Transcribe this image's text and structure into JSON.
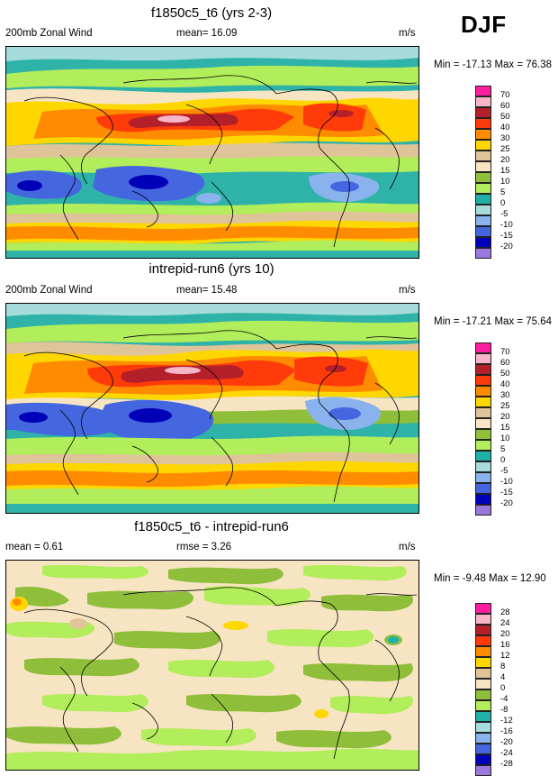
{
  "season": "DJF",
  "panels": [
    {
      "title": "f1850c5_t6 (yrs 2-3)",
      "variable": "200mb Zonal Wind",
      "stat_text": "mean=  16.09",
      "units": "m/s",
      "minmax": "Min = -17.13 Max =  76.38",
      "legend_colors": [
        "#ff1ea0",
        "#f7b5c8",
        "#b4202a",
        "#ff3b0a",
        "#ff8c00",
        "#ffb300",
        "#ffe000",
        "#e0c499",
        "#f7e4c2",
        "#8fbf3a",
        "#b2ed5b",
        "#1fb0a8",
        "#a6dcdc",
        "#8ab2ec",
        "#4466de",
        "#1919c9",
        "#000090",
        "#9b78db"
      ],
      "legend_labels": [
        "70",
        "60",
        "50",
        "40",
        "30",
        "25",
        "20",
        "15",
        "10",
        "5",
        "0",
        "-5",
        "-10",
        "-15",
        "-20"
      ],
      "legend_colors_used": [
        "#ff1ea0",
        "#f7b5c8",
        "#b4202a",
        "#ff3b0a",
        "#ff8c00",
        "#ffd700",
        "#e0c499",
        "#8fbf3a",
        "#b2ed5b",
        "#1fb0a8",
        "#a6dcdc",
        "#8ab2ec",
        "#4466de",
        "#0000b8",
        "#9b78db"
      ],
      "kind": "full"
    },
    {
      "title": "intrepid-run6 (yrs 10)",
      "variable": "200mb Zonal Wind",
      "stat_text": "mean=  15.48",
      "units": "m/s",
      "minmax": "Min = -17.21 Max =  75.64",
      "legend_labels": [
        "70",
        "60",
        "50",
        "40",
        "30",
        "25",
        "20",
        "15",
        "10",
        "5",
        "0",
        "-5",
        "-10",
        "-15",
        "-20"
      ],
      "legend_colors_used": [
        "#ff1ea0",
        "#f7b5c8",
        "#b4202a",
        "#ff3b0a",
        "#ff8c00",
        "#ffd700",
        "#e0c499",
        "#f7e4c2",
        "#8fbf3a",
        "#1fb0a8",
        "#a6dcdc",
        "#8ab2ec",
        "#4466de",
        "#0000b8",
        "#9b78db"
      ],
      "kind": "full"
    },
    {
      "title": "f1850c5_t6 - intrepid-run6",
      "variable": "mean =   0.61",
      "stat_text": "rmse =   3.26",
      "units": "m/s",
      "minmax": "Min =  -9.48 Max =  12.90",
      "legend_labels": [
        "28",
        "24",
        "20",
        "16",
        "12",
        "8",
        "4",
        "0",
        "-4",
        "-8",
        "-12",
        "-16",
        "-20",
        "-24",
        "-28"
      ],
      "legend_colors_used": [
        "#ff1ea0",
        "#f7b5c8",
        "#b4202a",
        "#ff3b0a",
        "#ff8c00",
        "#ffd700",
        "#e0c499",
        "#f7e4c2",
        "#8fbf3a",
        "#b2ed5b",
        "#1fb0a8",
        "#a6dcdc",
        "#8ab2ec",
        "#4466de",
        "#0000b8",
        "#9b78db"
      ],
      "kind": "diff"
    }
  ],
  "palette": {
    "bg_full": "#2fb3a8",
    "bg_diff": "#f7e4c2",
    "coast": "#000000"
  }
}
